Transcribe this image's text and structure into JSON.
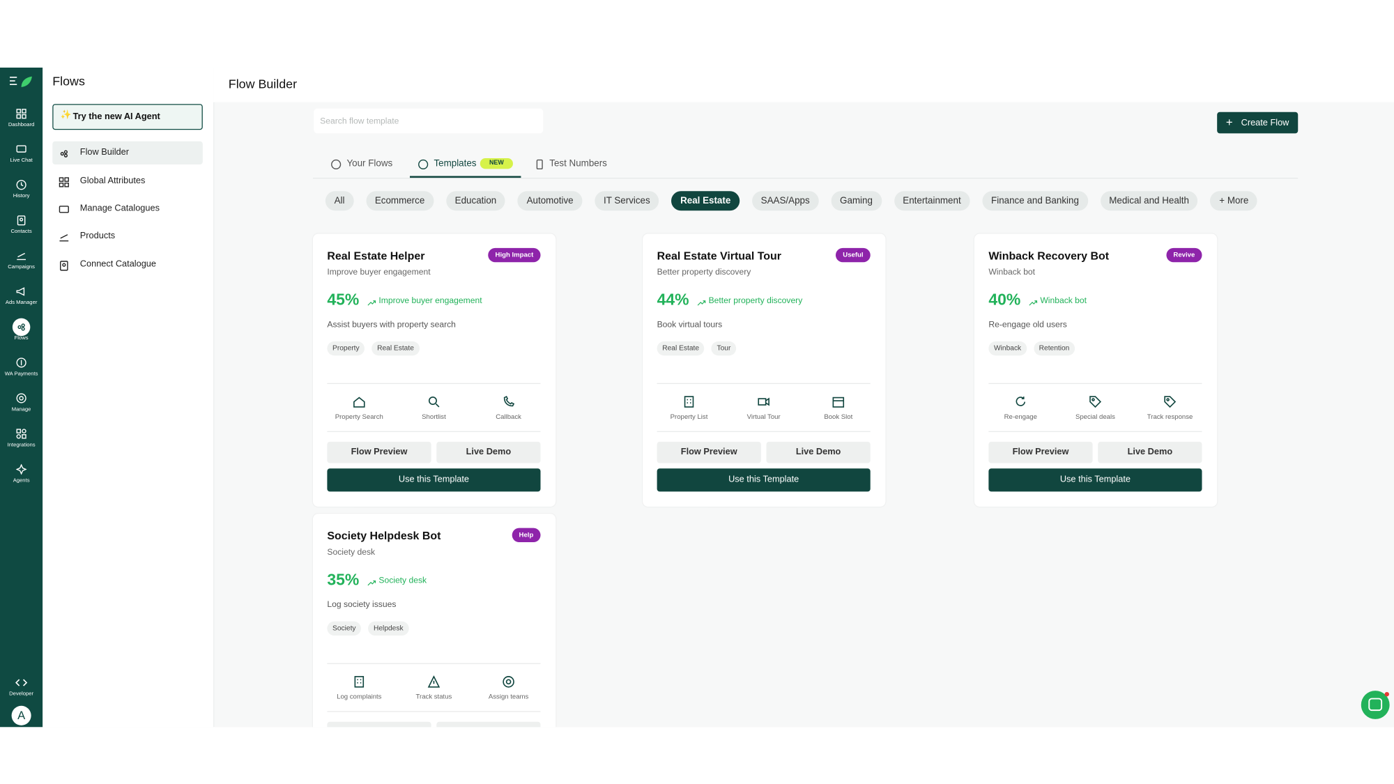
{
  "sidebar": {
    "items": [
      "Dashboard",
      "Live Chat",
      "History",
      "Contacts",
      "Campaigns",
      "Ads Manager",
      "Flows",
      "WA Payments",
      "Manage",
      "Integrations",
      "Agents"
    ],
    "developer": "Developer",
    "avatar": "A"
  },
  "panel": {
    "title": "Flows",
    "ai_button": "Try the new AI Agent",
    "menu": [
      "Flow Builder",
      "Global Attributes",
      "Manage Catalogues",
      "Products",
      "Connect Catalogue"
    ]
  },
  "header": {
    "title": "Flow Builder"
  },
  "search": {
    "placeholder": "Search flow template"
  },
  "create_button": "Create Flow",
  "tabs": [
    {
      "label": "Your Flows"
    },
    {
      "label": "Templates",
      "badge": "NEW"
    },
    {
      "label": "Test Numbers"
    }
  ],
  "filters": [
    "All",
    "Ecommerce",
    "Education",
    "Automotive",
    "IT Services",
    "Real Estate",
    "SAAS/Apps",
    "Gaming",
    "Entertainment",
    "Finance and Banking",
    "Medical and Health",
    "+ More"
  ],
  "cards": [
    {
      "title": "Real Estate Helper",
      "badge": "High Impact",
      "subtitle": "Improve buyer engagement",
      "metric": "45%",
      "metric_label": "Improve buyer engagement",
      "description": "Assist buyers with property search",
      "tags": [
        "Property",
        "Real Estate"
      ],
      "features": [
        "Property Search",
        "Shortlist",
        "Callback"
      ],
      "actions": [
        "Flow Preview",
        "Live Demo",
        "Use this Template"
      ]
    },
    {
      "title": "Real Estate Virtual Tour",
      "badge": "Useful",
      "subtitle": "Better property discovery",
      "metric": "44%",
      "metric_label": "Better property discovery",
      "description": "Book virtual tours",
      "tags": [
        "Real Estate",
        "Tour"
      ],
      "features": [
        "Property List",
        "Virtual Tour",
        "Book Slot"
      ],
      "actions": [
        "Flow Preview",
        "Live Demo",
        "Use this Template"
      ]
    },
    {
      "title": "Winback Recovery Bot",
      "badge": "Revive",
      "subtitle": "Winback bot",
      "metric": "40%",
      "metric_label": "Winback bot",
      "description": "Re-engage old users",
      "tags": [
        "Winback",
        "Retention"
      ],
      "features": [
        "Re-engage",
        "Special deals",
        "Track response"
      ],
      "actions": [
        "Flow Preview",
        "Live Demo",
        "Use this Template"
      ]
    },
    {
      "title": "Society Helpdesk Bot",
      "badge": "Help",
      "subtitle": "Society desk",
      "metric": "35%",
      "metric_label": "Society desk",
      "description": "Log society issues",
      "tags": [
        "Society",
        "Helpdesk"
      ],
      "features": [
        "Log complaints",
        "Track status",
        "Assign teams"
      ]
    }
  ]
}
